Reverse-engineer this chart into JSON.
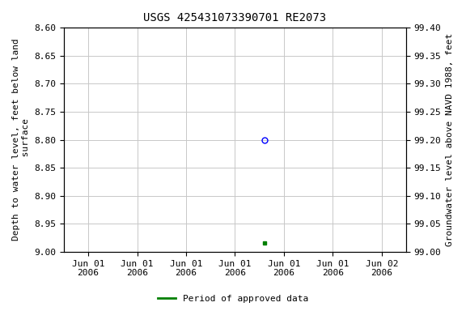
{
  "title": "USGS 425431073390701 RE2073",
  "ylabel_left": "Depth to water level, feet below land\n surface",
  "ylabel_right": "Groundwater level above NAVD 1988, feet",
  "ylim_left": [
    8.6,
    9.0
  ],
  "ylim_right": [
    99.4,
    99.0
  ],
  "yticks_left": [
    8.6,
    8.65,
    8.7,
    8.75,
    8.8,
    8.85,
    8.9,
    8.95,
    9.0
  ],
  "yticks_right": [
    99.4,
    99.35,
    99.3,
    99.25,
    99.2,
    99.15,
    99.1,
    99.05,
    99.0
  ],
  "data_point_circle": {
    "x": 3.6,
    "value": 8.8,
    "color": "blue",
    "marker": "o",
    "fillstyle": "none",
    "markersize": 5,
    "markeredgewidth": 1.0
  },
  "data_point_square": {
    "x": 3.6,
    "value": 8.985,
    "color": "#008000",
    "marker": "s",
    "markersize": 3.5
  },
  "xaxis_ticks": [
    0,
    1,
    2,
    3,
    4,
    5,
    6
  ],
  "xaxis_label_dates": [
    "Jun 01\n2006",
    "Jun 01\n2006",
    "Jun 01\n2006",
    "Jun 01\n2006",
    "Jun 01\n2006",
    "Jun 01\n2006",
    "Jun 02\n2006"
  ],
  "xlim": [
    -0.5,
    6.5
  ],
  "grid_color": "#c8c8c8",
  "background_color": "#ffffff",
  "legend_label": "Period of approved data",
  "legend_color": "#008000",
  "title_fontsize": 10,
  "tick_fontsize": 8,
  "label_fontsize": 8,
  "font_family": "monospace"
}
